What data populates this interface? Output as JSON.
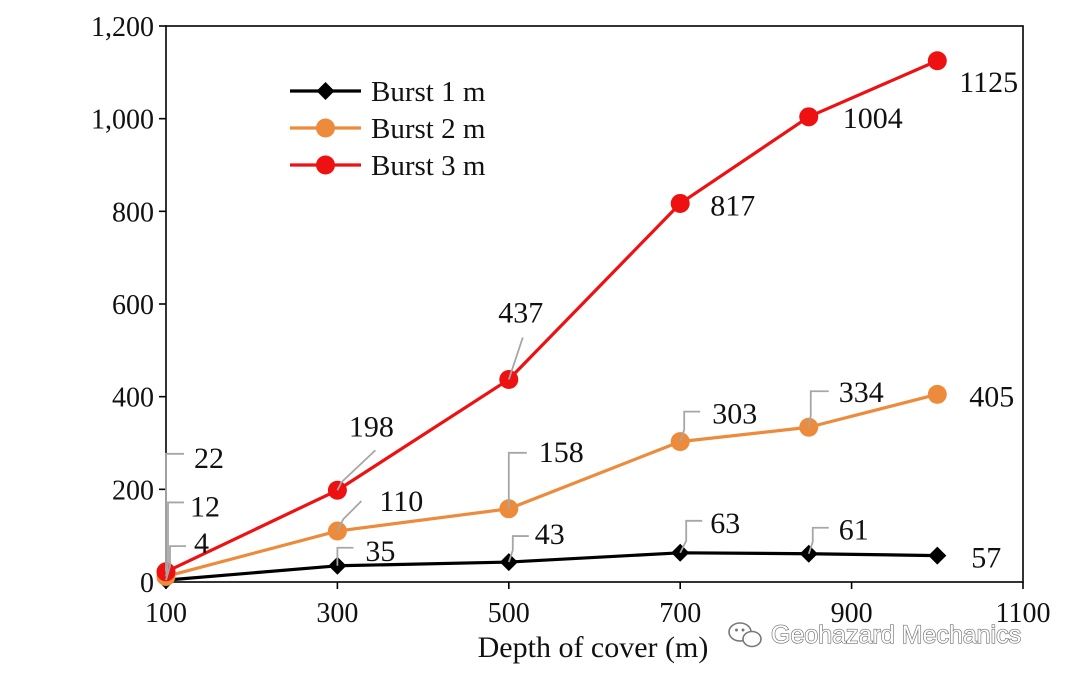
{
  "chart_data": {
    "type": "line",
    "title": "",
    "xlabel": "Depth of cover (m)",
    "ylabel": "",
    "xlim": [
      100,
      1100
    ],
    "ylim": [
      0,
      1200
    ],
    "xticks": [
      100,
      300,
      500,
      700,
      900,
      1100
    ],
    "xtick_labels": [
      "100",
      "300",
      "500",
      "700",
      "900",
      "1100"
    ],
    "yticks": [
      0,
      200,
      400,
      600,
      800,
      1000,
      1200
    ],
    "ytick_labels": [
      "0",
      "200",
      "400",
      "600",
      "800",
      "1,000",
      "1,200"
    ],
    "grid": false,
    "legend_position": "top-left",
    "series": [
      {
        "name": "Burst 1 m",
        "color": "#000000",
        "marker": "diamond",
        "x": [
          100,
          300,
          500,
          700,
          850,
          1000
        ],
        "values": [
          4,
          35,
          43,
          63,
          61,
          57
        ],
        "labels": [
          "4",
          "35",
          "43",
          "63",
          "61",
          "57"
        ]
      },
      {
        "name": "Burst 2 m",
        "color": "#ED8B3C",
        "marker": "circle",
        "x": [
          100,
          300,
          500,
          700,
          850,
          1000
        ],
        "values": [
          12,
          110,
          158,
          303,
          334,
          405
        ],
        "labels": [
          "12",
          "110",
          "158",
          "303",
          "334",
          "405"
        ]
      },
      {
        "name": "Burst 3 m",
        "color": "#EE1111",
        "marker": "circle",
        "x": [
          100,
          300,
          500,
          700,
          850,
          1000
        ],
        "values": [
          22,
          198,
          437,
          817,
          1004,
          1125
        ],
        "labels": [
          "22",
          "198",
          "437",
          "817",
          "1004",
          "1125"
        ]
      }
    ]
  },
  "watermark": {
    "text": "Geohazard Mechanics",
    "icon": "wechat-icon"
  }
}
